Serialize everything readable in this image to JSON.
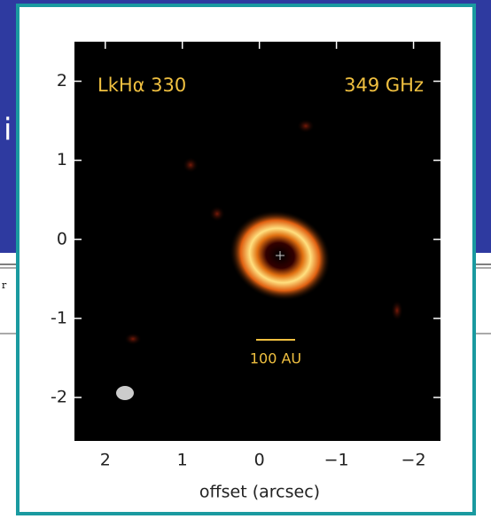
{
  "chart_data": {
    "type": "image",
    "annotations": [
      "LkHα 330",
      "349 GHz",
      "100 AU"
    ],
    "xlabel": "offset (arcsec)",
    "xlim": [
      2.4,
      -2.35
    ],
    "xticks": [
      2,
      1,
      0,
      {
        "value": -1,
        "label": "−1"
      },
      {
        "value": -2,
        "label": "−2"
      }
    ],
    "ylim": [
      -2.55,
      2.5
    ],
    "yticks": [
      2,
      1,
      0,
      -1,
      -2
    ],
    "frame_color": "#1a9aa0",
    "annotation_color": "#f0c040"
  },
  "background": {
    "fragments": [
      "i",
      "r"
    ]
  }
}
